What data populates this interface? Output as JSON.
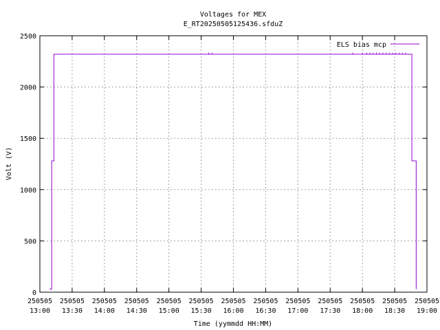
{
  "chart_data": {
    "type": "line",
    "title": "Voltages for MEX",
    "subtitle": "E_RT20250505125436.sfduZ",
    "xlabel": "Time (yymmdd HH:MM)",
    "ylabel": "Volt (V)",
    "xlim": [
      "2025-05-05 13:00",
      "2025-05-05 19:00"
    ],
    "ylim": [
      0,
      2500
    ],
    "grid": true,
    "legend_position": "top-right",
    "x_ticks": [
      {
        "t": "2025-05-05 13:00",
        "date": "250505",
        "time": "13:00"
      },
      {
        "t": "2025-05-05 13:30",
        "date": "250505",
        "time": "13:30"
      },
      {
        "t": "2025-05-05 14:00",
        "date": "250505",
        "time": "14:00"
      },
      {
        "t": "2025-05-05 14:30",
        "date": "250505",
        "time": "14:30"
      },
      {
        "t": "2025-05-05 15:00",
        "date": "250505",
        "time": "15:00"
      },
      {
        "t": "2025-05-05 15:30",
        "date": "250505",
        "time": "15:30"
      },
      {
        "t": "2025-05-05 16:00",
        "date": "250505",
        "time": "16:00"
      },
      {
        "t": "2025-05-05 16:30",
        "date": "250505",
        "time": "16:30"
      },
      {
        "t": "2025-05-05 17:00",
        "date": "250505",
        "time": "17:00"
      },
      {
        "t": "2025-05-05 17:30",
        "date": "250505",
        "time": "17:30"
      },
      {
        "t": "2025-05-05 18:00",
        "date": "250505",
        "time": "18:00"
      },
      {
        "t": "2025-05-05 18:30",
        "date": "250505",
        "time": "18:30"
      },
      {
        "t": "2025-05-05 19:00",
        "date": "250505",
        "time": "19:00"
      }
    ],
    "y_ticks": [
      0,
      500,
      1000,
      1500,
      2000,
      2500
    ],
    "series": [
      {
        "name": "ELS bias mcp",
        "color": "#9400d3",
        "points": [
          [
            "2025-05-05 13:09",
            30
          ],
          [
            "2025-05-05 13:10",
            30
          ],
          [
            "2025-05-05 13:11",
            1280
          ],
          [
            "2025-05-05 13:12",
            1280
          ],
          [
            "2025-05-05 13:13",
            2320
          ],
          [
            "2025-05-05 18:45",
            2320
          ],
          [
            "2025-05-05 18:46",
            1280
          ],
          [
            "2025-05-05 18:49",
            1280
          ],
          [
            "2025-05-05 18:50",
            30
          ]
        ],
        "spikes": [
          [
            "2025-05-05 15:37",
            2335
          ],
          [
            "2025-05-05 15:40",
            2335
          ],
          [
            "2025-05-05 17:51",
            2335
          ],
          [
            "2025-05-05 18:00",
            2335
          ],
          [
            "2025-05-05 18:04",
            2335
          ],
          [
            "2025-05-05 18:07",
            2335
          ],
          [
            "2025-05-05 18:10",
            2335
          ],
          [
            "2025-05-05 18:13",
            2335
          ],
          [
            "2025-05-05 18:16",
            2335
          ],
          [
            "2025-05-05 18:19",
            2335
          ],
          [
            "2025-05-05 18:22",
            2335
          ],
          [
            "2025-05-05 18:25",
            2335
          ],
          [
            "2025-05-05 18:28",
            2335
          ],
          [
            "2025-05-05 18:31",
            2335
          ],
          [
            "2025-05-05 18:34",
            2335
          ],
          [
            "2025-05-05 18:37",
            2335
          ],
          [
            "2025-05-05 18:40",
            2335
          ]
        ]
      }
    ]
  }
}
